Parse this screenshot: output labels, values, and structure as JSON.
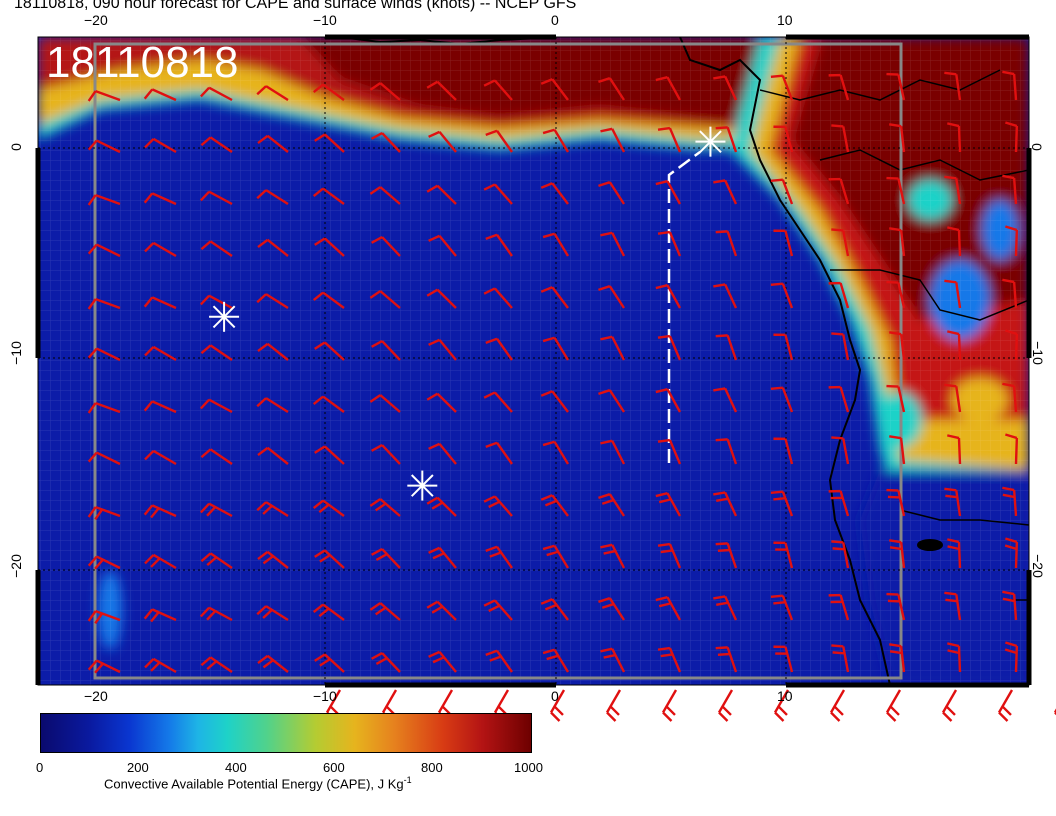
{
  "title": "18110818, 090 hour forecast for CAPE and surface winds (knots) -- NCEP GFS",
  "stamp": "18110818",
  "axes": {
    "top_ticks": [
      "−20",
      "−10",
      "0",
      "10"
    ],
    "bottom_ticks": [
      "−20",
      "−10",
      "0",
      "10"
    ],
    "left_ticks": [
      "0",
      "−10",
      "−20"
    ],
    "right_ticks": [
      "0",
      "−10",
      "−20"
    ]
  },
  "colorbar": {
    "ticks": [
      "0",
      "200",
      "400",
      "600",
      "800",
      "1000"
    ],
    "label": "Convective Available Potential Energy (CAPE), J Kg",
    "label_sup": "-1",
    "colors": [
      "#0a0a6e",
      "#1478e8",
      "#1ed2c8",
      "#b4cc32",
      "#e6821e",
      "#6e0000"
    ]
  },
  "markers": [
    {
      "name": "storm-marker-1",
      "lon": 6.7,
      "lat": 0.3
    },
    {
      "name": "storm-marker-2",
      "lon": -14.4,
      "lat": -8.0
    },
    {
      "name": "storm-marker-3",
      "lon": -5.8,
      "lat": -16.0
    }
  ],
  "colors": {
    "ocean": "#0c1ca8",
    "land_hot": "#7a0000",
    "wind_barb": "#e01010",
    "coast": "#000000",
    "marker": "#ffffff"
  }
}
